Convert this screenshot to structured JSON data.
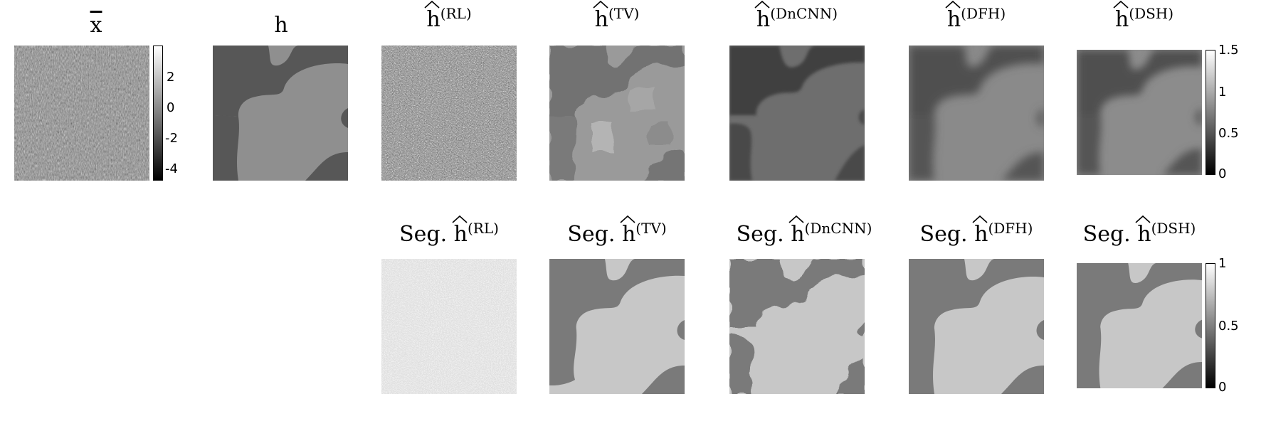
{
  "panels": {
    "xbar": {
      "symbol": "x"
    },
    "h": {
      "symbol": "h"
    },
    "rl": {
      "symbol": "h",
      "sup": "(RL)"
    },
    "tv": {
      "symbol": "h",
      "sup": "(TV)"
    },
    "dncnn": {
      "symbol": "h",
      "sup": "(DnCNN)"
    },
    "dfh": {
      "symbol": "h",
      "sup": "(DFH)"
    },
    "dsh": {
      "symbol": "h",
      "sup": "(DSH)"
    },
    "seg_rl": {
      "prefix": "Seg.",
      "symbol": "h",
      "sup": "(RL)"
    },
    "seg_tv": {
      "prefix": "Seg.",
      "symbol": "h",
      "sup": "(TV)"
    },
    "seg_dncnn": {
      "prefix": "Seg.",
      "symbol": "h",
      "sup": "(DnCNN)"
    },
    "seg_dfh": {
      "prefix": "Seg.",
      "symbol": "h",
      "sup": "(DFH)"
    },
    "seg_dsh": {
      "prefix": "Seg.",
      "symbol": "h",
      "sup": "(DSH)"
    }
  },
  "colorbars": {
    "xbar": {
      "ticks": [
        "2",
        "0",
        "-2",
        "-4"
      ]
    },
    "dsh": {
      "ticks": [
        "1.5",
        "1",
        "0.5",
        "0"
      ]
    },
    "seg": {
      "ticks": [
        "1",
        "0.5",
        "0"
      ]
    }
  },
  "colors": {
    "dark_region": "#575757",
    "light_region": "#8f8f8f",
    "seg_dark": "#7a7a7a",
    "seg_light": "#c7c7c7"
  }
}
